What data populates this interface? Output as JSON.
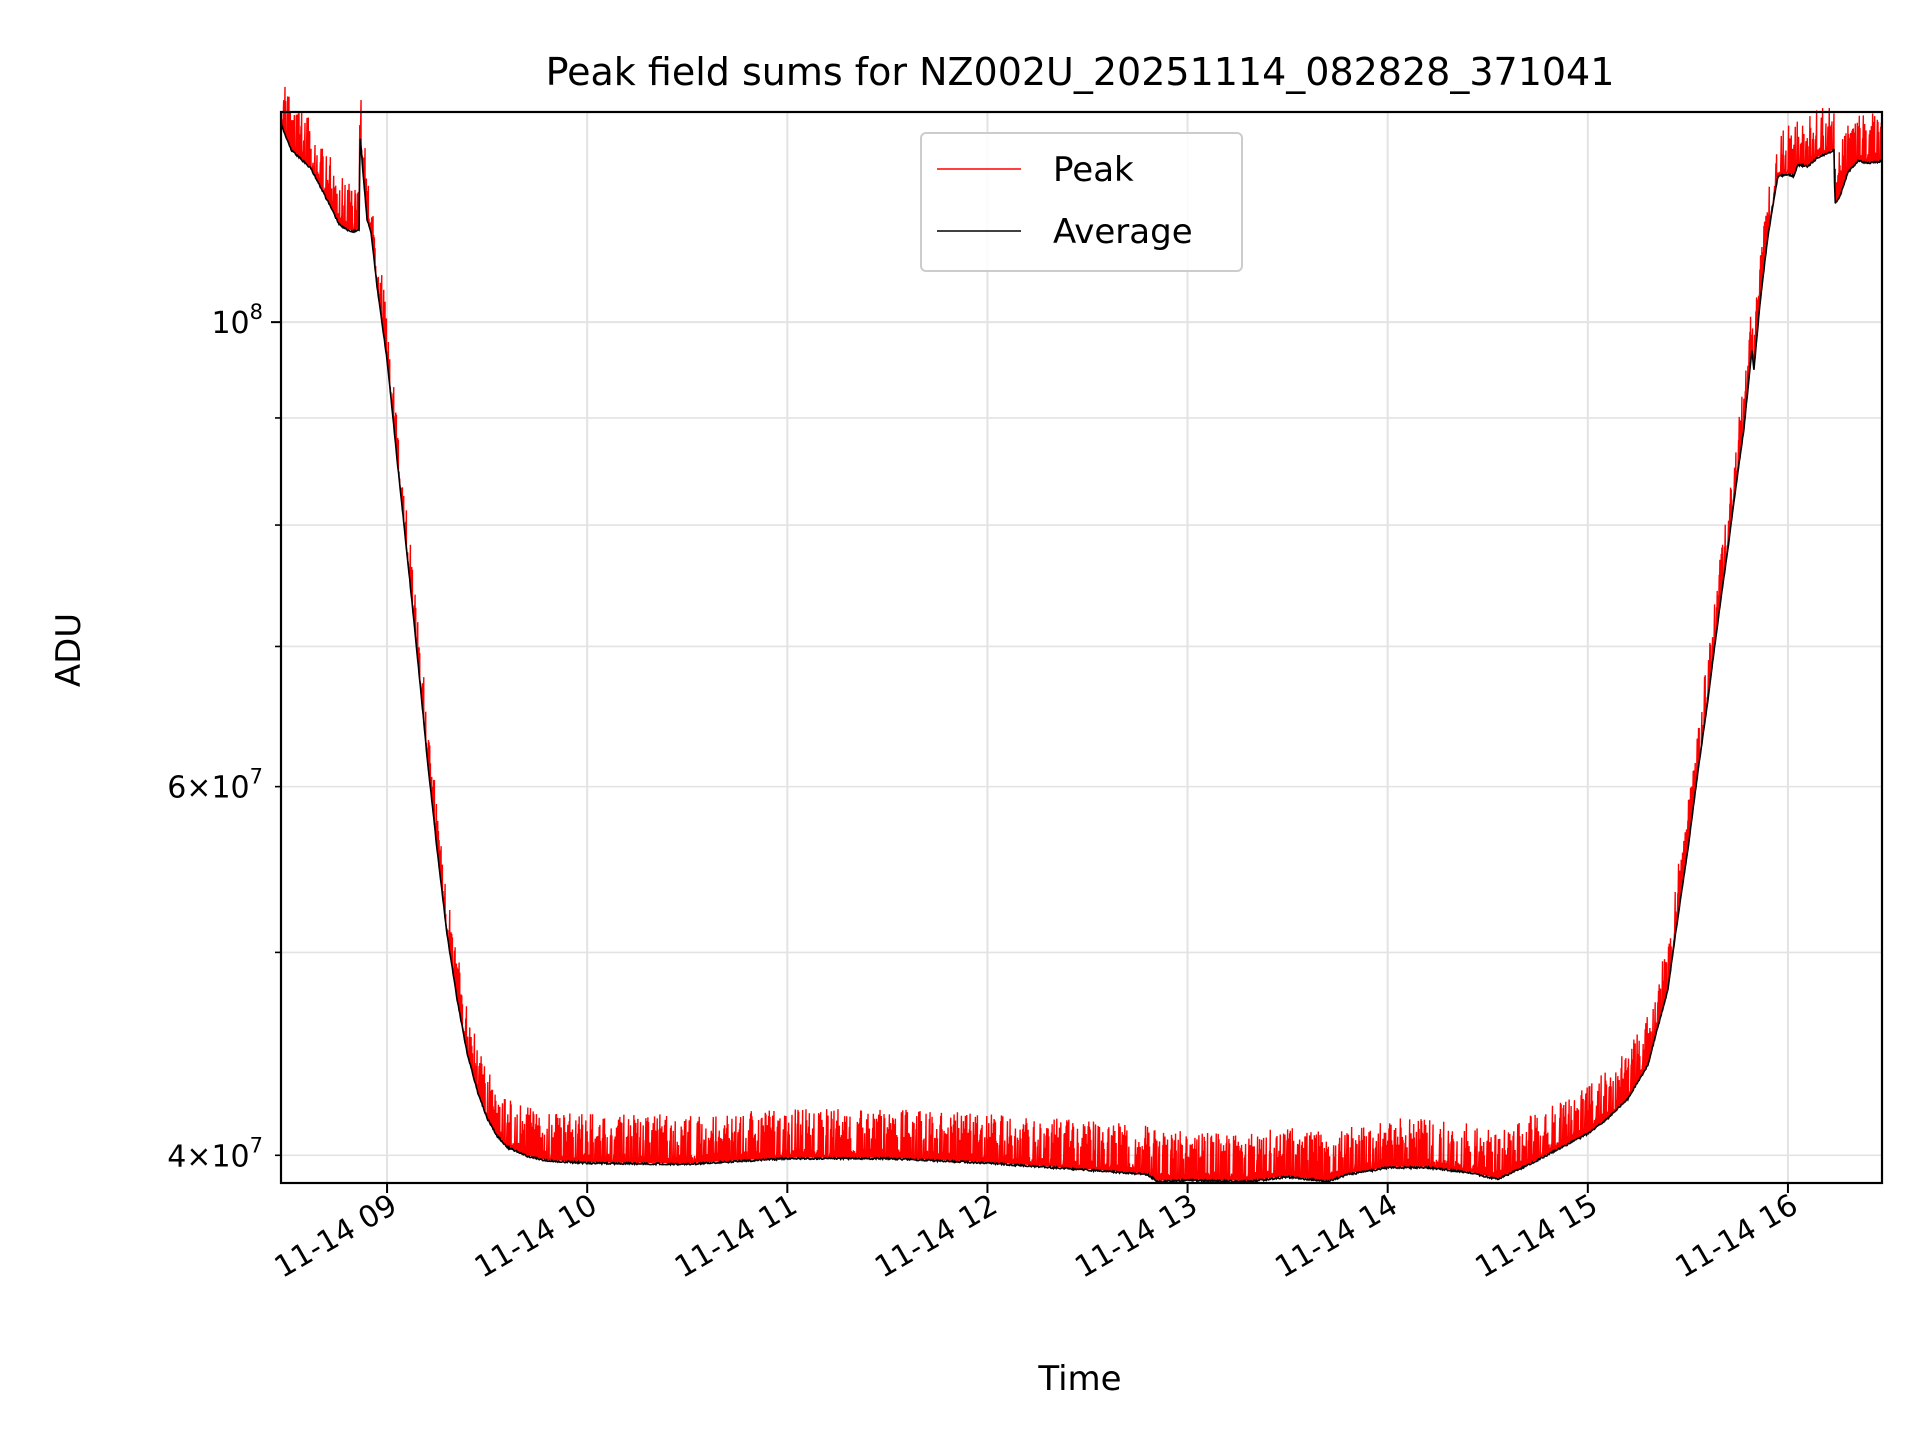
{
  "chart_data": {
    "type": "line",
    "title": "Peak field sums for NZ002U_20251114_082828_371041",
    "xlabel": "Time",
    "ylabel": "ADU",
    "yscale": "log",
    "xlim": [
      8.47,
      16.47
    ],
    "ylim": [
      38800000,
      126000000
    ],
    "x_ticks": [
      {
        "label": "11-14 09",
        "value": 9
      },
      {
        "label": "11-14 10",
        "value": 10
      },
      {
        "label": "11-14 11",
        "value": 11
      },
      {
        "label": "11-14 12",
        "value": 12
      },
      {
        "label": "11-14 13",
        "value": 13
      },
      {
        "label": "11-14 14",
        "value": 14
      },
      {
        "label": "11-14 15",
        "value": 15
      },
      {
        "label": "11-14 16",
        "value": 16
      }
    ],
    "y_ticks_major": [
      {
        "base": "10",
        "exp": "8",
        "value": 100000000
      }
    ],
    "y_ticks_minor": [
      {
        "mant": "4",
        "base": "10",
        "exp": "7",
        "value": 40000000,
        "labeled": true
      },
      {
        "value": 50000000,
        "labeled": false
      },
      {
        "mant": "6",
        "base": "10",
        "exp": "7",
        "value": 60000000,
        "labeled": true
      },
      {
        "value": 70000000,
        "labeled": false
      },
      {
        "value": 80000000,
        "labeled": false
      },
      {
        "value": 90000000,
        "labeled": false
      }
    ],
    "times_symbol": "×",
    "grid": true,
    "legend_position": "upper-center",
    "series": [
      {
        "name": "Peak",
        "color": "#ff0000"
      },
      {
        "name": "Average",
        "color": "#000000"
      }
    ],
    "average_profile": [
      [
        8.47,
        124.5
      ],
      [
        8.52,
        121.0
      ],
      [
        8.58,
        119.5
      ],
      [
        8.62,
        118.5
      ],
      [
        8.68,
        115.5
      ],
      [
        8.72,
        113.5
      ],
      [
        8.76,
        111.5
      ],
      [
        8.8,
        110.8
      ],
      [
        8.83,
        110.6
      ],
      [
        8.86,
        110.8
      ],
      [
        8.865,
        123.0
      ],
      [
        8.88,
        118.0
      ],
      [
        8.9,
        112.0
      ],
      [
        8.92,
        110.5
      ],
      [
        8.95,
        104.0
      ],
      [
        9.0,
        96.0
      ],
      [
        9.05,
        86.0
      ],
      [
        9.1,
        77.5
      ],
      [
        9.15,
        69.5
      ],
      [
        9.2,
        62.0
      ],
      [
        9.25,
        56.0
      ],
      [
        9.3,
        51.0
      ],
      [
        9.35,
        47.5
      ],
      [
        9.4,
        44.8
      ],
      [
        9.45,
        43.0
      ],
      [
        9.5,
        41.7
      ],
      [
        9.55,
        40.9
      ],
      [
        9.6,
        40.4
      ],
      [
        9.7,
        40.0
      ],
      [
        9.8,
        39.8
      ],
      [
        10.0,
        39.7
      ],
      [
        10.5,
        39.65
      ],
      [
        11.0,
        39.9
      ],
      [
        11.5,
        39.9
      ],
      [
        12.0,
        39.7
      ],
      [
        12.5,
        39.4
      ],
      [
        12.8,
        39.2
      ],
      [
        12.85,
        38.9
      ],
      [
        13.0,
        38.95
      ],
      [
        13.3,
        38.9
      ],
      [
        13.5,
        39.1
      ],
      [
        13.7,
        38.9
      ],
      [
        13.8,
        39.2
      ],
      [
        14.0,
        39.5
      ],
      [
        14.2,
        39.5
      ],
      [
        14.4,
        39.3
      ],
      [
        14.55,
        39.0
      ],
      [
        14.7,
        39.6
      ],
      [
        14.85,
        40.3
      ],
      [
        15.0,
        41.0
      ],
      [
        15.1,
        41.7
      ],
      [
        15.2,
        42.6
      ],
      [
        15.3,
        44.2
      ],
      [
        15.4,
        48.0
      ],
      [
        15.5,
        56.0
      ],
      [
        15.6,
        66.0
      ],
      [
        15.7,
        78.0
      ],
      [
        15.78,
        89.0
      ],
      [
        15.82,
        97.0
      ],
      [
        15.83,
        95.0
      ],
      [
        15.86,
        102.0
      ],
      [
        15.9,
        110.0
      ],
      [
        15.95,
        117.5
      ],
      [
        16.0,
        117.8
      ],
      [
        16.03,
        117.5
      ],
      [
        16.05,
        119.0
      ],
      [
        16.1,
        118.8
      ],
      [
        16.15,
        120.0
      ],
      [
        16.2,
        120.5
      ],
      [
        16.23,
        121.0
      ],
      [
        16.235,
        114.0
      ],
      [
        16.26,
        115.0
      ],
      [
        16.3,
        118.0
      ],
      [
        16.35,
        119.5
      ],
      [
        16.4,
        119.2
      ],
      [
        16.47,
        119.5
      ]
    ]
  }
}
